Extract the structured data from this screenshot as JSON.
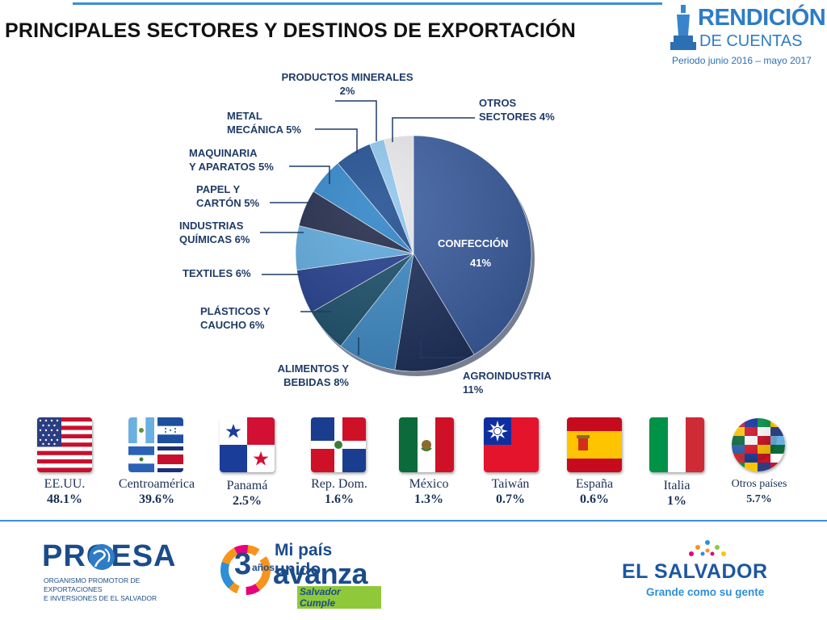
{
  "page": {
    "title": "PRINCIPALES SECTORES Y DESTINOS DE EXPORTACIÓN"
  },
  "header_logo": {
    "line1": "RENDICIÓN",
    "line2": "DE CUENTAS",
    "period": "Periodo junio 2016 – mayo 2017"
  },
  "chart_data": {
    "type": "pie",
    "title": "",
    "slices": [
      {
        "label": "CONFECCIÓN",
        "display": "41%",
        "value": 41,
        "color": "#3a5c9e"
      },
      {
        "label": "AGROINDUSTRIA",
        "display": "11%",
        "value": 11,
        "color": "#1d2f5a"
      },
      {
        "label": "ALIMENTOS Y BEBIDAS",
        "display": "8%",
        "value": 8,
        "color": "#3e89c4"
      },
      {
        "label": "PLÁSTICOS Y CAUCHO",
        "display": "6%",
        "value": 6,
        "color": "#1b4e6a"
      },
      {
        "label": "TEXTILES",
        "display": "6%",
        "value": 6,
        "color": "#233f8c"
      },
      {
        "label": "INDUSTRIAS QUÍMICAS",
        "display": "6%",
        "value": 6,
        "color": "#5ea9dd"
      },
      {
        "label": "PAPEL Y CARTÓN",
        "display": "5%",
        "value": 5,
        "color": "#222a4a"
      },
      {
        "label": "MAQUINARIA Y APARATOS",
        "display": "5%",
        "value": 5,
        "color": "#2f84c8"
      },
      {
        "label": "METAL MECÁNICA",
        "display": "5%",
        "value": 5,
        "color": "#1f4e91"
      },
      {
        "label": "PRODUCTOS MINERALES",
        "display": "2%",
        "value": 2,
        "color": "#8fc6ee"
      },
      {
        "label": "OTROS SECTORES",
        "display": "4%",
        "value": 4,
        "color": "#e8e8ec"
      }
    ]
  },
  "callouts": {
    "confeccion": {
      "name": "CONFECCIÓN",
      "value": "41%"
    },
    "agro": {
      "line1": "AGROINDUSTRIA",
      "line2": "11%"
    },
    "alimentos": {
      "line1": "ALIMENTOS Y",
      "line2": "BEBIDAS 8%"
    },
    "plasticos": {
      "line1": "PLÁSTICOS Y",
      "line2": "CAUCHO 6%"
    },
    "textiles": {
      "line1": "TEXTILES 6%"
    },
    "quimicas": {
      "line1": "INDUSTRIAS",
      "line2": "QUÍMICAS 6%"
    },
    "papel": {
      "line1": "PAPEL Y",
      "line2": "CARTÓN 5%"
    },
    "maquinaria": {
      "line1": "MAQUINARIA",
      "line2": "Y APARATOS 5%"
    },
    "metal": {
      "line1": "METAL",
      "line2": "MECÁNICA 5%"
    },
    "minerales": {
      "line1": "PRODUCTOS MINERALES",
      "line2": "2%"
    },
    "otros": {
      "line1": "OTROS",
      "line2": "SECTORES 4%"
    }
  },
  "destinations": [
    {
      "name": "EE.UU.",
      "value": "48.1%",
      "flag": "usa-flag"
    },
    {
      "name": "Centroamérica",
      "value": "39.6%",
      "flag": "central-america-flags"
    },
    {
      "name": "Panamá",
      "value": "2.5%",
      "flag": "panama-flag"
    },
    {
      "name": "Rep. Dom.",
      "value": "1.6%",
      "flag": "dominican-republic-flag"
    },
    {
      "name": "México",
      "value": "1.3%",
      "flag": "mexico-flag"
    },
    {
      "name": "Taiwán",
      "value": "0.7%",
      "flag": "taiwan-flag"
    },
    {
      "name": "España",
      "value": "0.6%",
      "flag": "spain-flag"
    },
    {
      "name": "Italia",
      "value": "1%",
      "flag": "italy-flag"
    },
    {
      "name": "Otros países",
      "value": "5.7%",
      "flag": "world-flags-globe"
    }
  ],
  "footer": {
    "proesa": {
      "name": "PROESA",
      "line1": "ORGANISMO PROMOTOR DE EXPORTACIONES",
      "line2": "E INVERSIONES DE EL SALVADOR"
    },
    "avanza": {
      "line1": "Mi país unido",
      "line2": "avanza",
      "years_num": "3",
      "years_word": "años",
      "tag": "Salvador Cumple"
    },
    "el_salvador": {
      "name": "EL SALVADOR",
      "tagline": "Grande como su gente"
    }
  }
}
